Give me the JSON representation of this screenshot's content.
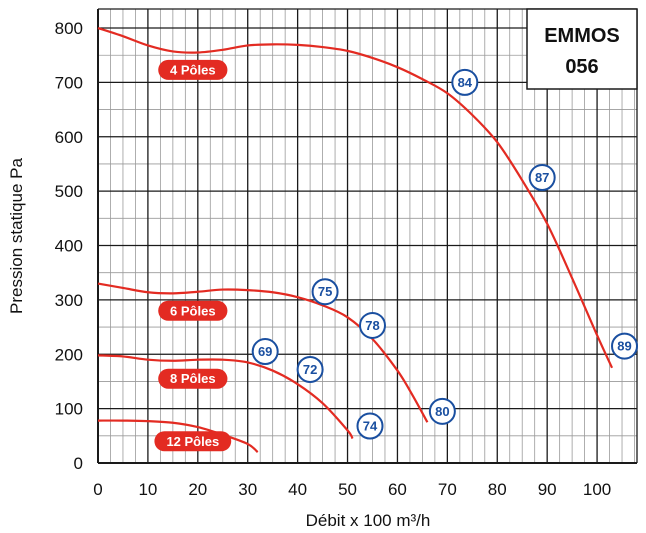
{
  "chart_data": {
    "type": "line",
    "title": "EMMOS",
    "subtitle": "056",
    "xlabel": "Débit x 100 m³/h",
    "ylabel": "Pression statique  Pa",
    "xlim": [
      0,
      108
    ],
    "ylim": [
      0,
      835
    ],
    "x_ticks": [
      "0",
      "10",
      "20",
      "30",
      "40",
      "50",
      "60",
      "70",
      "80",
      "90",
      "100"
    ],
    "y_ticks": [
      "0",
      "100",
      "200",
      "300",
      "400",
      "500",
      "600",
      "700",
      "800"
    ],
    "grid": true,
    "colors": {
      "curve": "#e32b22",
      "marker": "#1a4fa0",
      "grid": "#1a1a1a",
      "grid_minor": "#9a9a9a"
    },
    "series": [
      {
        "name": "4 Pôles",
        "label_at": [
          19,
          723
        ],
        "x": [
          0,
          5,
          10,
          15,
          20,
          25,
          30,
          35,
          40,
          45,
          50,
          55,
          60,
          65,
          70,
          75,
          80,
          85,
          90,
          95,
          100,
          103
        ],
        "y": [
          800,
          785,
          768,
          757,
          755,
          760,
          768,
          770,
          769,
          765,
          758,
          745,
          728,
          706,
          680,
          640,
          590,
          520,
          440,
          340,
          235,
          175
        ]
      },
      {
        "name": "6 Pôles",
        "label_at": [
          19,
          280
        ],
        "x": [
          0,
          5,
          10,
          15,
          20,
          25,
          30,
          35,
          40,
          45,
          50,
          55,
          60,
          63,
          66
        ],
        "y": [
          330,
          322,
          314,
          312,
          315,
          319,
          318,
          314,
          305,
          290,
          268,
          228,
          170,
          125,
          75
        ]
      },
      {
        "name": "8 Pôles",
        "label_at": [
          19,
          155
        ],
        "x": [
          0,
          5,
          10,
          15,
          20,
          25,
          30,
          35,
          40,
          45,
          50,
          51
        ],
        "y": [
          198,
          196,
          190,
          188,
          190,
          190,
          185,
          170,
          145,
          110,
          60,
          45
        ]
      },
      {
        "name": "12 Pôles",
        "label_at": [
          19,
          40
        ],
        "x": [
          0,
          5,
          10,
          15,
          20,
          25,
          30,
          32
        ],
        "y": [
          78,
          78,
          77,
          74,
          66,
          52,
          35,
          20
        ]
      }
    ],
    "annotations": [
      {
        "label": "84",
        "x": 73.5,
        "y": 700
      },
      {
        "label": "87",
        "x": 89,
        "y": 525
      },
      {
        "label": "89",
        "x": 105.5,
        "y": 215
      },
      {
        "label": "75",
        "x": 45.5,
        "y": 315
      },
      {
        "label": "78",
        "x": 55,
        "y": 253
      },
      {
        "label": "80",
        "x": 69,
        "y": 95
      },
      {
        "label": "69",
        "x": 33.5,
        "y": 205
      },
      {
        "label": "72",
        "x": 42.5,
        "y": 172
      },
      {
        "label": "74",
        "x": 54.5,
        "y": 68
      }
    ]
  }
}
